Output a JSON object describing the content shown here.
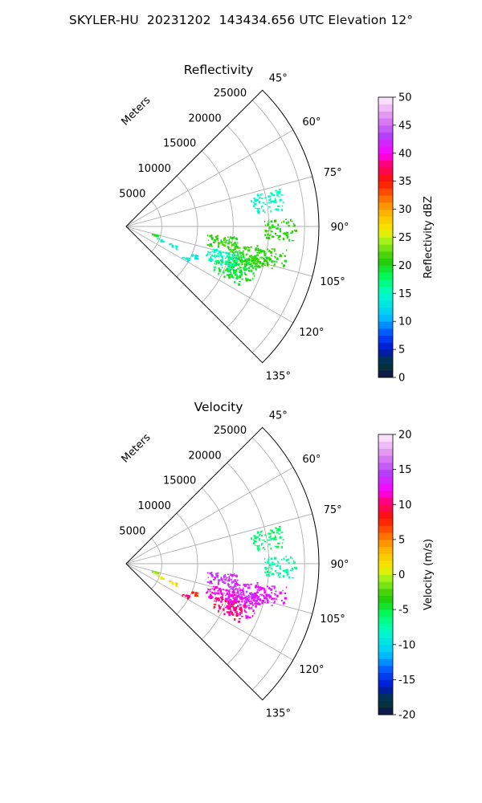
{
  "page": {
    "title": "SKYLER-HU  20231202  143434.656 UTC Elevation 12°"
  },
  "panels": [
    {
      "title": "Reflectivity",
      "range_axis_label": "Meters",
      "colorbar_label": "Reflectivity dBZ"
    },
    {
      "title": "Velocity",
      "range_axis_label": "Meters",
      "colorbar_label": "Velocity (m/s)"
    }
  ],
  "chart_data": [
    {
      "type": "polar-sector",
      "title": "Reflectivity",
      "range_unit_label": "Meters",
      "range_ticks": [
        5000,
        10000,
        15000,
        20000,
        25000
      ],
      "range_max": 27000,
      "azimuth_range_deg": [
        45,
        135
      ],
      "azimuth_ticks_deg": [
        45,
        60,
        75,
        90,
        105,
        120,
        135
      ],
      "grid": true,
      "colorbar": {
        "label": "Reflectivity dBZ",
        "range": [
          0,
          50
        ],
        "ticks": [
          0,
          5,
          10,
          15,
          20,
          25,
          30,
          35,
          40,
          45,
          50
        ]
      },
      "echo_regions": [
        {
          "azimuth_deg": 106,
          "range_m": 16500,
          "value": 19
        },
        {
          "azimuth_deg": 103,
          "range_m": 17500,
          "value": 21
        },
        {
          "azimuth_deg": 110,
          "range_m": 17000,
          "value": 20
        },
        {
          "azimuth_deg": 113,
          "range_m": 15500,
          "value": 19
        },
        {
          "azimuth_deg": 108,
          "range_m": 14000,
          "value": 15
        },
        {
          "azimuth_deg": 113,
          "range_m": 10500,
          "value": 14
        },
        {
          "azimuth_deg": 118,
          "range_m": 9500,
          "value": 14
        },
        {
          "azimuth_deg": 99,
          "range_m": 13500,
          "value": 21
        },
        {
          "azimuth_deg": 102,
          "range_m": 20500,
          "value": 21
        },
        {
          "azimuth_deg": 91,
          "range_m": 21500,
          "value": 21
        },
        {
          "azimuth_deg": 80,
          "range_m": 20000,
          "value": 15
        },
        {
          "azimuth_deg": 106,
          "range_m": 4000,
          "value": 20
        },
        {
          "azimuth_deg": 111,
          "range_m": 5000,
          "value": 14
        },
        {
          "azimuth_deg": 112,
          "range_m": 7000,
          "value": 14
        }
      ]
    },
    {
      "type": "polar-sector",
      "title": "Velocity",
      "range_unit_label": "Meters",
      "range_ticks": [
        5000,
        10000,
        15000,
        20000,
        25000
      ],
      "range_max": 27000,
      "azimuth_range_deg": [
        45,
        135
      ],
      "azimuth_ticks_deg": [
        45,
        60,
        75,
        90,
        105,
        120,
        135
      ],
      "grid": true,
      "colorbar": {
        "label": "Velocity (m/s)",
        "range": [
          -20,
          20
        ],
        "ticks": [
          -20,
          -15,
          -10,
          -5,
          0,
          5,
          10,
          15,
          20
        ]
      },
      "echo_regions": [
        {
          "azimuth_deg": 106,
          "range_m": 16500,
          "value": 14
        },
        {
          "azimuth_deg": 103,
          "range_m": 17500,
          "value": 13
        },
        {
          "azimuth_deg": 110,
          "range_m": 17000,
          "value": 12
        },
        {
          "azimuth_deg": 113,
          "range_m": 15500,
          "value": 10
        },
        {
          "azimuth_deg": 108,
          "range_m": 14000,
          "value": 12
        },
        {
          "azimuth_deg": 113,
          "range_m": 10500,
          "value": 8
        },
        {
          "azimuth_deg": 118,
          "range_m": 9500,
          "value": 10
        },
        {
          "azimuth_deg": 99,
          "range_m": 13500,
          "value": 14
        },
        {
          "azimuth_deg": 102,
          "range_m": 20500,
          "value": 13
        },
        {
          "azimuth_deg": 91,
          "range_m": 21500,
          "value": -7
        },
        {
          "azimuth_deg": 80,
          "range_m": 20000,
          "value": -6
        },
        {
          "azimuth_deg": 106,
          "range_m": 4000,
          "value": -1
        },
        {
          "azimuth_deg": 111,
          "range_m": 5000,
          "value": 1
        },
        {
          "azimuth_deg": 112,
          "range_m": 7000,
          "value": 2
        }
      ]
    }
  ]
}
